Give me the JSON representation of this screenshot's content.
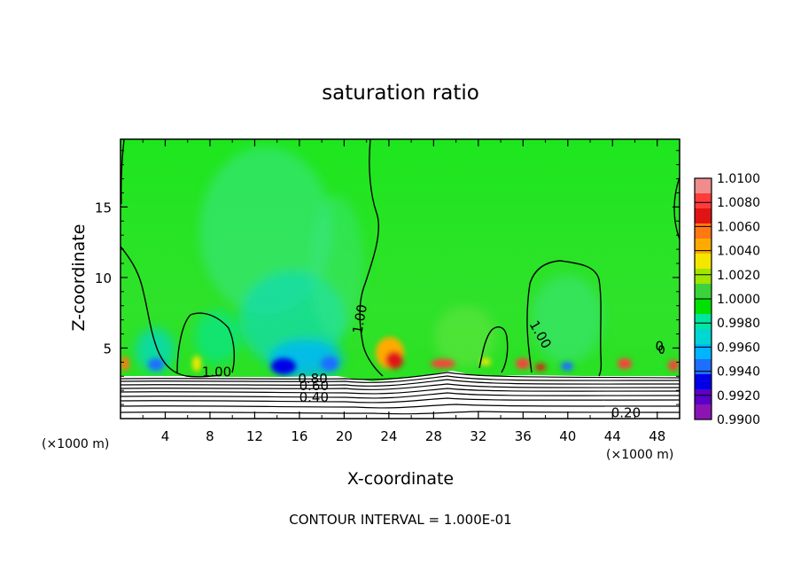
{
  "chart_data": {
    "type": "heatmap",
    "title": "saturation ratio",
    "xlabel": "X-coordinate",
    "ylabel": "Z-coordinate",
    "x_unit_left": "(×1000 m)",
    "x_unit_right": "(×1000 m)",
    "xlim": [
      0,
      50
    ],
    "ylim": [
      0,
      19.8
    ],
    "xticks": [
      "4",
      "8",
      "12",
      "16",
      "20",
      "24",
      "28",
      "32",
      "36",
      "40",
      "44",
      "48"
    ],
    "yticks": [
      "5",
      "10",
      "15"
    ],
    "footer": "CONTOUR INTERVAL = 1.000E-01",
    "colorbar": {
      "labels": [
        "1.0100",
        "1.0080",
        "1.0060",
        "1.0040",
        "1.0020",
        "1.0000",
        "0.9980",
        "0.9960",
        "0.9940",
        "0.9920",
        "0.9900"
      ],
      "colors": [
        "#f08c8c",
        "#ff3c3c",
        "#e01414",
        "#ff7814",
        "#ffaa00",
        "#f5e600",
        "#a0e600",
        "#3cd23c",
        "#00e100",
        "#00e6a0",
        "#00d7d2",
        "#00b4ff",
        "#1e6eff",
        "#0000e6",
        "#5a00c8",
        "#8c14b4"
      ]
    },
    "contour_labels": [
      {
        "text": "1.00",
        "x": 8.6,
        "z": 3.0
      },
      {
        "text": "1.00",
        "x": 21.8,
        "z": 7.0
      },
      {
        "text": "1.00",
        "x": 37.2,
        "z": 5.8
      },
      {
        "text": "0.80",
        "x": 17.2,
        "z": 2.5
      },
      {
        "text": "0.60",
        "x": 17.3,
        "z": 2.0
      },
      {
        "text": "0.40",
        "x": 17.3,
        "z": 1.2
      },
      {
        "text": "0.20",
        "x": 45.2,
        "z": 0.1
      },
      {
        "text": "0",
        "x": 48.2,
        "z": 4.8
      }
    ]
  }
}
